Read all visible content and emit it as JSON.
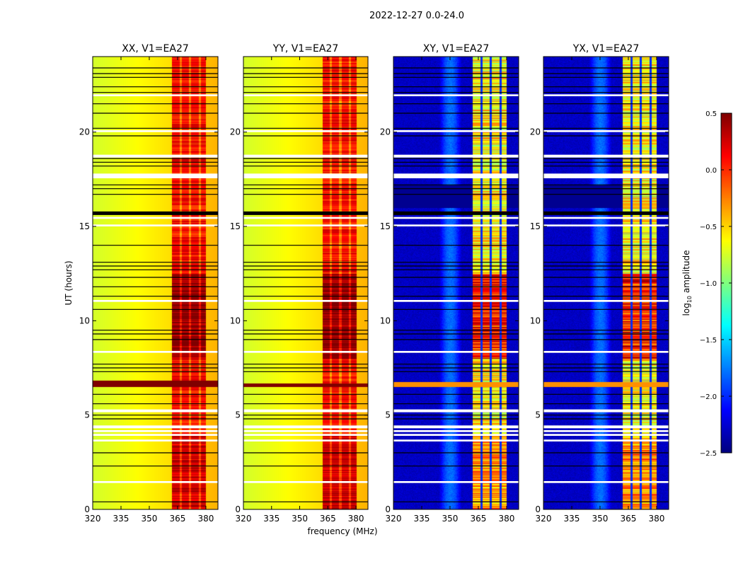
{
  "chart_data": {
    "type": "heatmap",
    "title": "2022-12-27 0.0-24.0",
    "xlabel": "frequency (MHz)",
    "ylabel": "UT (hours)",
    "xlim": [
      320,
      386.4
    ],
    "ylim": [
      0,
      24
    ],
    "xticks": [
      320,
      335,
      350,
      365,
      380
    ],
    "yticks": [
      0,
      5,
      10,
      15,
      20
    ],
    "colorbar": {
      "label": "log10 amplitude",
      "label_main": "log",
      "label_sub": "10",
      "label_rest": " amplitude",
      "colormap": "jet",
      "range": [
        -2.5,
        0.5
      ],
      "ticks": [
        0.5,
        0.0,
        -0.5,
        -1.0,
        -1.5,
        -2.0,
        -2.5
      ],
      "tick_labels": [
        "0.5",
        "0.0",
        "−0.5",
        "−1.0",
        "−1.5",
        "−2.0",
        "−2.5"
      ]
    },
    "panels": [
      {
        "title": "XX, V1=EA27",
        "type": "parallel",
        "background_low": -0.75,
        "background_high": -0.4,
        "rfi_band_mhz": [
          362,
          380
        ],
        "rfi_level": 0.1,
        "rfi_gaps_mhz": [
          366.5,
          371.5,
          376.5
        ],
        "dark_red_hours": [
          6.5,
          6.85
        ]
      },
      {
        "title": "YY, V1=EA27",
        "type": "parallel",
        "background_low": -0.75,
        "background_high": -0.4,
        "rfi_band_mhz": [
          362,
          380
        ],
        "rfi_level": 0.1,
        "rfi_gaps_mhz": [
          366.5,
          371.5,
          376.5
        ],
        "dark_red_hours": [
          6.5,
          6.7
        ]
      },
      {
        "title": "XY, V1=EA27",
        "type": "cross",
        "background_low": -2.3,
        "background_high": -2.2,
        "bump_mhz": [
          344,
          356
        ],
        "rfi_band_mhz": [
          362,
          380
        ],
        "rfi_level": -0.6,
        "rfi_gaps_mhz": [
          366.5,
          371.5,
          376.5
        ]
      },
      {
        "title": "YX, V1=EA27",
        "type": "cross",
        "background_low": -2.3,
        "background_high": -2.2,
        "bump_mhz": [
          344,
          356
        ],
        "rfi_band_mhz": [
          362,
          380
        ],
        "rfi_level": -0.6,
        "rfi_gaps_mhz": [
          366.5,
          371.5,
          376.5
        ]
      }
    ],
    "flagged_black_hours": [
      0.4,
      2.3,
      3.0,
      4.8,
      5.0,
      5.6,
      6.1,
      7.3,
      7.5,
      7.7,
      9.0,
      9.3,
      9.5,
      10.6,
      11.3,
      11.8,
      12.3,
      12.7,
      12.9,
      13.1,
      14.0,
      15.7,
      16.7,
      17.0,
      17.2,
      18.2,
      18.4,
      18.6,
      19.8,
      20.2,
      21.0,
      21.5,
      22.1,
      22.4,
      22.9,
      23.1,
      23.4
    ],
    "flagged_white_hours": [
      [
        1.4,
        1.5
      ],
      [
        3.6,
        3.7
      ],
      [
        3.9,
        4.0
      ],
      [
        4.1,
        4.2
      ],
      [
        4.3,
        4.45
      ],
      [
        5.15,
        5.3
      ],
      [
        8.3,
        8.4
      ],
      [
        11.0,
        11.1
      ],
      [
        15.0,
        15.1
      ],
      [
        15.4,
        15.5
      ],
      [
        17.55,
        17.8
      ],
      [
        18.65,
        18.8
      ],
      [
        20.0,
        20.1
      ],
      [
        21.9,
        22.0
      ]
    ]
  }
}
